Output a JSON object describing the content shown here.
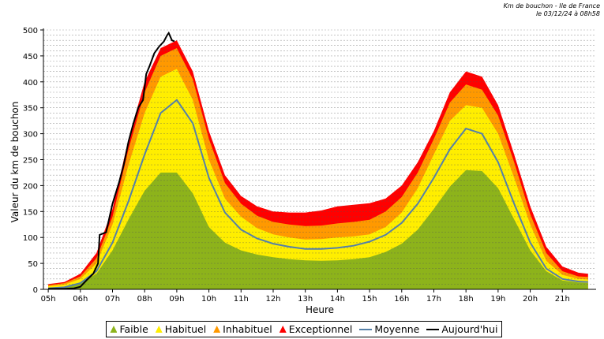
{
  "header": {
    "line1": "Km de bouchon - Ile de France",
    "line2": "le 03/12/24 à 08h58"
  },
  "chart_data": {
    "type": "area",
    "title": "Km de bouchon - Ile de France",
    "xlabel": "Heure",
    "ylabel": "Valeur du  km de bouchon",
    "ylim": [
      0,
      500
    ],
    "xlim": [
      5,
      22
    ],
    "yticks": [
      0,
      50,
      100,
      150,
      200,
      250,
      300,
      350,
      400,
      450,
      500
    ],
    "xticks": [
      "05h",
      "06h",
      "07h",
      "08h",
      "09h",
      "10h",
      "11h",
      "12h",
      "13h",
      "14h",
      "15h",
      "16h",
      "17h",
      "18h",
      "19h",
      "20h",
      "21h"
    ],
    "grid": true,
    "legend_position": "bottom",
    "x": [
      5,
      5.5,
      6,
      6.5,
      7,
      7.5,
      8,
      8.5,
      9,
      9.5,
      10,
      10.5,
      11,
      11.5,
      12,
      12.5,
      13,
      13.5,
      14,
      14.5,
      15,
      15.5,
      16,
      16.5,
      17,
      17.5,
      18,
      18.5,
      19,
      19.5,
      20,
      20.5,
      21,
      21.5,
      21.8
    ],
    "series": [
      {
        "name": "Faible",
        "color": "#8db31b",
        "values": [
          3,
          5,
          12,
          30,
          75,
          135,
          190,
          225,
          225,
          185,
          120,
          90,
          75,
          67,
          62,
          58,
          56,
          55,
          56,
          58,
          62,
          72,
          88,
          115,
          155,
          198,
          230,
          228,
          195,
          135,
          75,
          35,
          17,
          13,
          12
        ]
      },
      {
        "name": "Habituel",
        "color": "#ffee00",
        "values": [
          6,
          9,
          20,
          50,
          125,
          240,
          340,
          410,
          425,
          365,
          250,
          175,
          140,
          118,
          106,
          100,
          96,
          97,
          100,
          102,
          106,
          120,
          148,
          195,
          260,
          325,
          355,
          350,
          300,
          215,
          125,
          55,
          28,
          20,
          19
        ]
      },
      {
        "name": "Inhabituel",
        "color": "#ff9900",
        "values": [
          8,
          12,
          25,
          60,
          140,
          270,
          380,
          450,
          465,
          405,
          290,
          205,
          165,
          142,
          130,
          125,
          122,
          123,
          127,
          130,
          134,
          150,
          178,
          225,
          290,
          360,
          395,
          385,
          335,
          245,
          145,
          70,
          35,
          25,
          24
        ]
      },
      {
        "name": "Exceptionnel",
        "color": "#ff0000",
        "values": [
          10,
          14,
          30,
          70,
          155,
          290,
          400,
          465,
          480,
          420,
          305,
          220,
          180,
          160,
          150,
          148,
          148,
          152,
          160,
          163,
          166,
          175,
          200,
          245,
          305,
          380,
          420,
          410,
          355,
          260,
          160,
          82,
          44,
          32,
          30
        ]
      },
      {
        "name": "Moyenne",
        "color": "#5580a8",
        "values": [
          2,
          4,
          12,
          35,
          90,
          170,
          260,
          340,
          365,
          320,
          215,
          148,
          115,
          98,
          88,
          82,
          78,
          78,
          80,
          84,
          92,
          105,
          128,
          165,
          215,
          270,
          310,
          300,
          245,
          165,
          90,
          40,
          20,
          15,
          14
        ]
      }
    ],
    "today": {
      "name": "Aujourd'hui",
      "color": "#000000",
      "x": [
        5,
        5.5,
        5.8,
        6,
        6.2,
        6.4,
        6.55,
        6.6,
        6.8,
        7,
        7.2,
        7.35,
        7.5,
        7.65,
        7.8,
        7.95,
        8.05,
        8.15,
        8.3,
        8.45,
        8.6,
        8.7,
        8.75,
        8.85,
        8.93
      ],
      "values": [
        1,
        1,
        2,
        5,
        18,
        30,
        50,
        105,
        110,
        165,
        205,
        240,
        285,
        320,
        350,
        365,
        415,
        430,
        455,
        468,
        478,
        490,
        494,
        480,
        478
      ]
    }
  },
  "legend": {
    "items": [
      {
        "label": "Faible",
        "color": "#8db31b",
        "kind": "area"
      },
      {
        "label": "Habituel",
        "color": "#ffee00",
        "kind": "area"
      },
      {
        "label": "Inhabituel",
        "color": "#ff9900",
        "kind": "area"
      },
      {
        "label": "Exceptionnel",
        "color": "#ff0000",
        "kind": "area"
      },
      {
        "label": "Moyenne",
        "color": "#5580a8",
        "kind": "line"
      },
      {
        "label": "Aujourd'hui",
        "color": "#000000",
        "kind": "line"
      }
    ]
  }
}
